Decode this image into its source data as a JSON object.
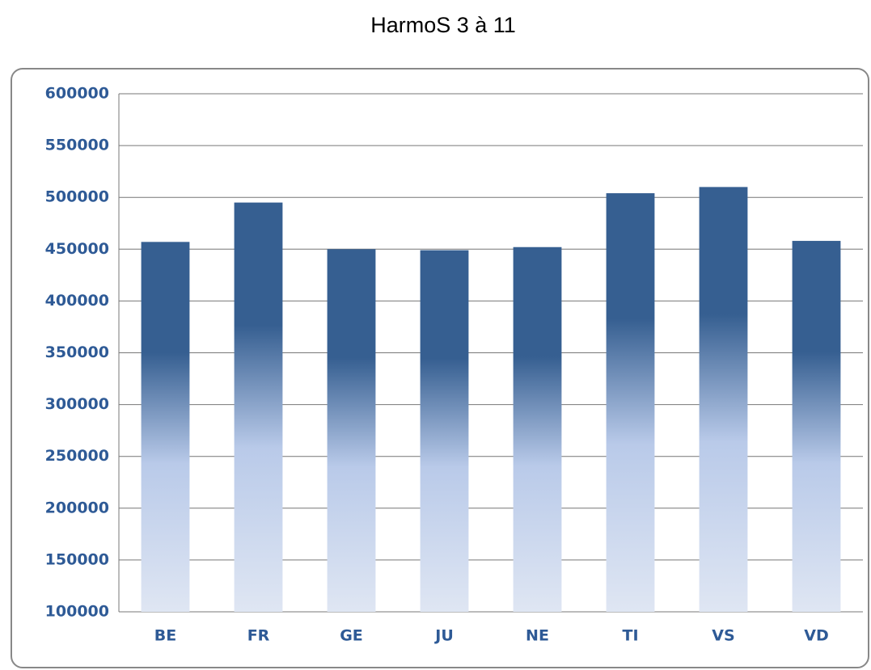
{
  "chart_data": {
    "type": "bar",
    "title": "HarmoS 3 à 11",
    "categories": [
      "BE",
      "FR",
      "GE",
      "JU",
      "NE",
      "TI",
      "VS",
      "VD"
    ],
    "values": [
      457000,
      495000,
      450000,
      449000,
      452000,
      504000,
      510000,
      458000
    ],
    "color": "#365f91",
    "ylim": [
      100000,
      600000
    ],
    "yticks": [
      100000,
      150000,
      200000,
      250000,
      300000,
      350000,
      400000,
      450000,
      500000,
      550000,
      600000
    ],
    "grid": true
  }
}
